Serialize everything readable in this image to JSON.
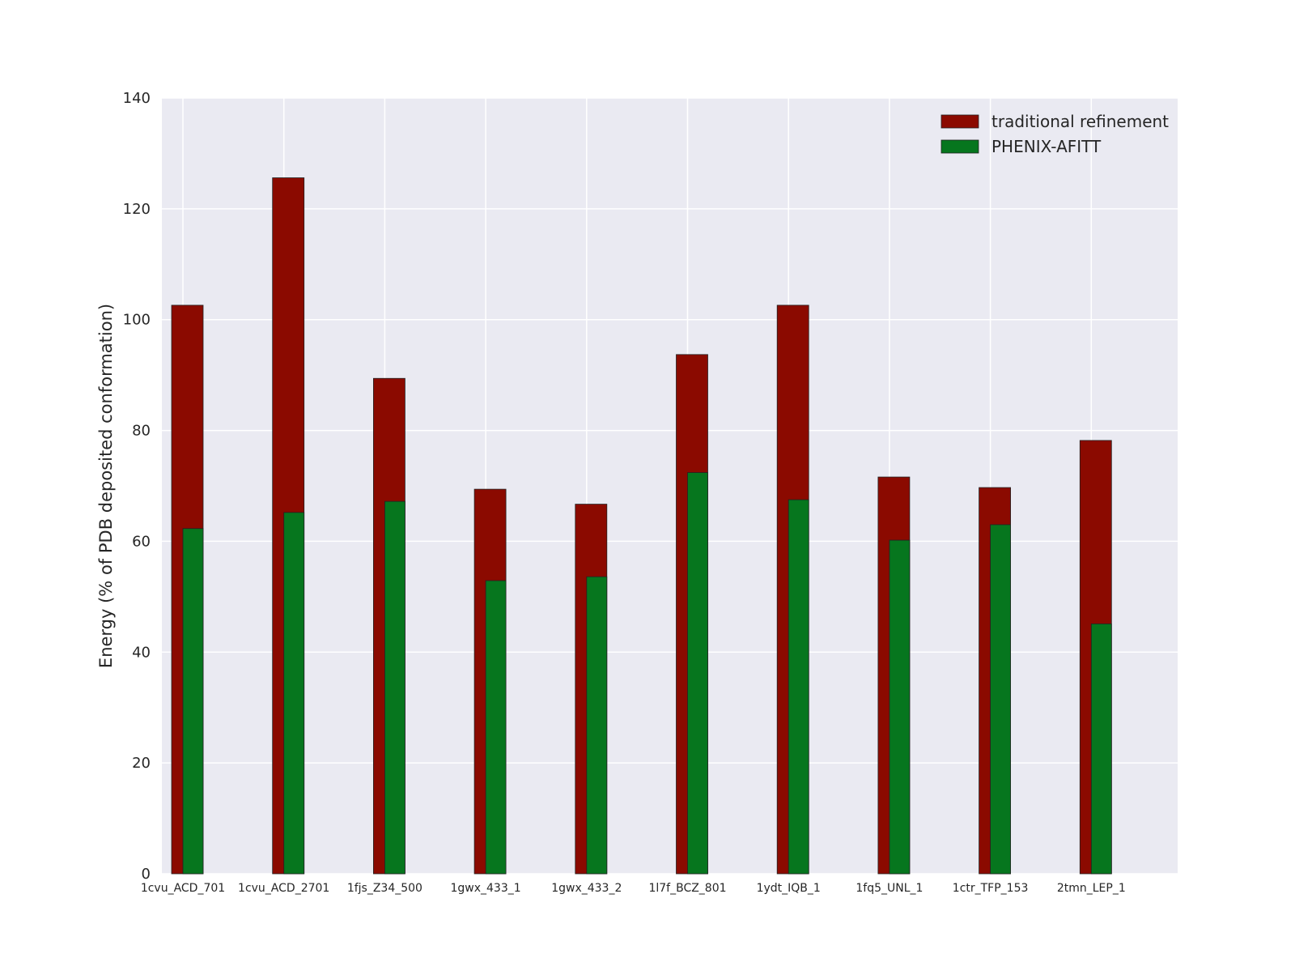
{
  "chart_data": {
    "type": "bar",
    "title": "",
    "xlabel": "",
    "ylabel": "Energy (% of PDB deposited conformation)",
    "ylim": [
      0,
      140
    ],
    "yticks": [
      0,
      20,
      40,
      60,
      80,
      100,
      120,
      140
    ],
    "grid": true,
    "legend_position": "top-right",
    "categories": [
      "1cvu_ACD_701",
      "1cvu_ACD_2701",
      "1fjs_Z34_500",
      "1gwx_433_1",
      "1gwx_433_2",
      "1l7f_BCZ_801",
      "1ydt_IQB_1",
      "1fq5_UNL_1",
      "1ctr_TFP_153",
      "2tmn_LEP_1"
    ],
    "series": [
      {
        "name": "traditional refinement",
        "color": "#8b0a00",
        "values": [
          102.6,
          125.6,
          89.4,
          69.4,
          66.7,
          93.7,
          102.6,
          71.6,
          69.7,
          78.2
        ]
      },
      {
        "name": "PHENIX-AFITT",
        "color": "#06761e",
        "values": [
          62.3,
          65.2,
          67.2,
          52.9,
          53.6,
          72.4,
          67.5,
          60.2,
          63.0,
          45.1
        ]
      }
    ],
    "background_color": "#eaeaf2"
  }
}
